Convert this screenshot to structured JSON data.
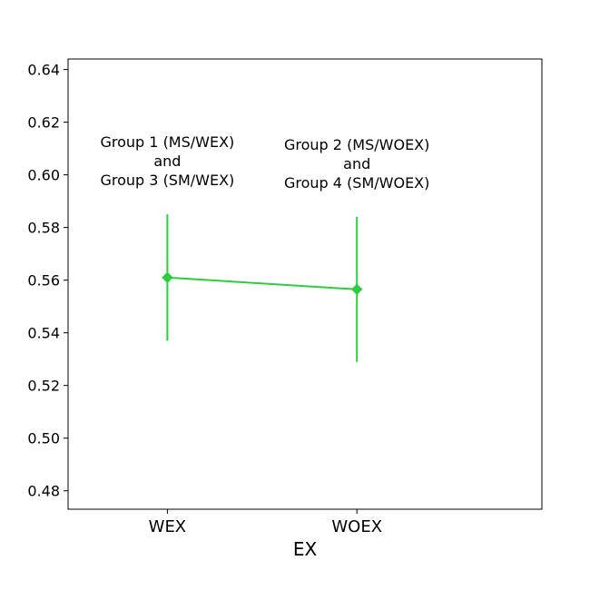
{
  "chart_data": {
    "type": "line",
    "xlabel": "EX",
    "ylabel": "",
    "categories": [
      "WEX",
      "WOEX"
    ],
    "ylim": [
      0.473,
      0.644
    ],
    "yticks": [
      "0.48",
      "0.50",
      "0.52",
      "0.54",
      "0.56",
      "0.58",
      "0.60",
      "0.62",
      "0.64"
    ],
    "series": [
      {
        "color": "#2ecc40",
        "marker": "diamond",
        "points": [
          {
            "x": "WEX",
            "y": 0.561,
            "err_low": 0.537,
            "err_high": 0.585
          },
          {
            "x": "WOEX",
            "y": 0.5565,
            "err_low": 0.529,
            "err_high": 0.584
          }
        ]
      }
    ],
    "annotations": [
      {
        "x": "WEX",
        "lines": [
          "Group 1 (MS/WEX)",
          "and",
          "Group 3 (SM/WEX)"
        ]
      },
      {
        "x": "WOEX",
        "lines": [
          "Group 2 (MS/WOEX)",
          "and",
          "Group 4 (SM/WOEX)"
        ]
      }
    ],
    "grid": false,
    "legend": "none"
  }
}
